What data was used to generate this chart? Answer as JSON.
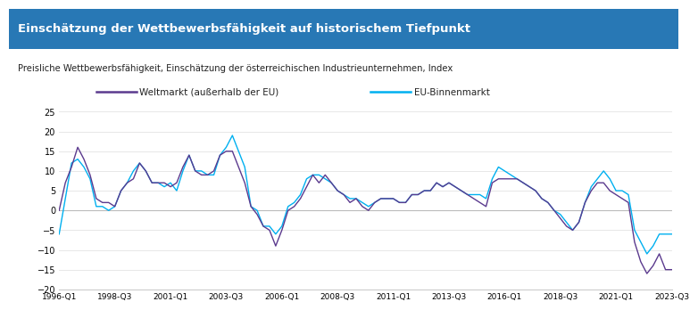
{
  "title_box": "Einschätzung der Wettbewerbsfähigkeit auf historischem Tiefpunkt",
  "subtitle": "Preisliche Wettbewerbsfähigkeit, Einschätzung der österreichischen Industrieunternehmen, Index",
  "title_bg_color": "#2878b5",
  "title_text_color": "#ffffff",
  "line1_label": "Weltmarkt (außerhalb der EU)",
  "line2_label": "EU-Binnenmarkt",
  "line1_color": "#5b3a8e",
  "line2_color": "#00b0f0",
  "ylim": [
    -20,
    27
  ],
  "yticks": [
    -20,
    -15,
    -10,
    -5,
    0,
    5,
    10,
    15,
    20,
    25
  ],
  "xtick_labels": [
    "1996-Q1",
    "1998-Q3",
    "2001-Q1",
    "2003-Q3",
    "2006-Q1",
    "2008-Q3",
    "2011-Q1",
    "2013-Q3",
    "2016-Q1",
    "2018-Q3",
    "2021-Q1",
    "2023-Q3"
  ],
  "bg_color": "#ffffff",
  "grid_color": "#cccccc",
  "weltmarkt": [
    0,
    7,
    11,
    16,
    13,
    9,
    3,
    2,
    2,
    1,
    5,
    7,
    8,
    12,
    10,
    7,
    7,
    7,
    6,
    7,
    11,
    14,
    10,
    9,
    9,
    10,
    14,
    15,
    15,
    11,
    7,
    1,
    -1,
    -4,
    -5,
    -9,
    -5,
    0,
    1,
    3,
    6,
    9,
    7,
    9,
    7,
    5,
    4,
    2,
    3,
    1,
    0,
    2,
    3,
    3,
    3,
    2,
    2,
    4,
    4,
    5,
    5,
    7,
    6,
    7,
    6,
    5,
    4,
    3,
    2,
    1,
    7,
    8,
    8,
    8,
    8,
    7,
    6,
    5,
    3,
    2,
    0,
    -2,
    -4,
    -5,
    -3,
    2,
    5,
    7,
    7,
    5,
    4,
    3,
    2,
    -8,
    -13,
    -16,
    -14,
    -11,
    -15,
    -15
  ],
  "eumarkt": [
    -6,
    3,
    12,
    13,
    11,
    8,
    1,
    1,
    0,
    1,
    5,
    7,
    10,
    12,
    10,
    7,
    7,
    6,
    7,
    5,
    10,
    14,
    10,
    10,
    9,
    9,
    14,
    16,
    19,
    15,
    11,
    1,
    0,
    -4,
    -4,
    -6,
    -4,
    1,
    2,
    4,
    8,
    9,
    9,
    8,
    7,
    5,
    4,
    3,
    3,
    2,
    1,
    2,
    3,
    3,
    3,
    2,
    2,
    4,
    4,
    5,
    5,
    7,
    6,
    7,
    6,
    5,
    4,
    4,
    4,
    3,
    8,
    11,
    10,
    9,
    8,
    7,
    6,
    5,
    3,
    2,
    0,
    -1,
    -3,
    -5,
    -3,
    2,
    6,
    8,
    10,
    8,
    5,
    5,
    4,
    -5,
    -8,
    -11,
    -9,
    -6,
    -6,
    -6
  ]
}
